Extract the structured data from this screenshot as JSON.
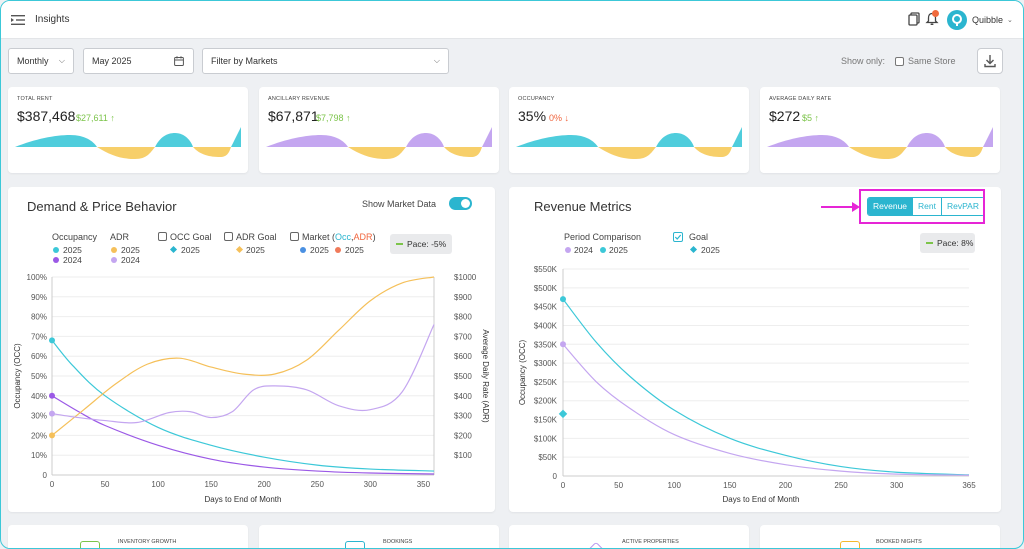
{
  "header": {
    "title": "Insights",
    "user_name": "Quibble"
  },
  "filters": {
    "period": "Monthly",
    "date": "May 2025",
    "markets_placeholder": "Filter by Markets",
    "show_only_label": "Show only:",
    "same_store_label": "Same Store"
  },
  "kpis": [
    {
      "label": "TOTAL RENT",
      "value": "$387,468",
      "delta": "$27,611",
      "direction": "up",
      "color": "#3cc8d8"
    },
    {
      "label": "ANCILLARY REVENUE",
      "value": "$67,871",
      "delta": "$7,798",
      "direction": "up",
      "color": "#b996ee"
    },
    {
      "label": "OCCUPANCY",
      "value": "35%",
      "delta": "0%",
      "direction": "down",
      "color": "#3cc8d8"
    },
    {
      "label": "AVERAGE DAILY RATE",
      "value": "$272",
      "delta": "$5",
      "direction": "up",
      "color": "#b996ee"
    }
  ],
  "demand": {
    "title": "Demand & Price Behavior",
    "market_toggle_label": "Show Market Data",
    "market_toggle_on": true,
    "legend": {
      "occupancy": "Occupancy",
      "adr": "ADR",
      "occ_goal": "OCC Goal",
      "adr_goal": "ADR Goal",
      "market": "Market (",
      "market_occ": "Occ",
      "market_sep": ",",
      "market_adr": "ADR",
      "market_close": ")",
      "y2025": "2025",
      "y2024": "2024"
    },
    "pace_label": "Pace: -5%",
    "xlabel": "Days to End of Month",
    "ylabel_left": "Occupancy (OCC)",
    "ylabel_right": "Average Daily Rate (ADR)"
  },
  "revenue": {
    "title": "Revenue Metrics",
    "tabs": [
      "Revenue",
      "Rent",
      "RevPAR"
    ],
    "active_tab": "Revenue",
    "legend": {
      "period": "Period Comparison",
      "goal": "Goal",
      "y2024": "2024",
      "y2025": "2025"
    },
    "pace_label": "Pace: 8%",
    "xlabel": "Days to End of Month",
    "ylabel": "Occupancy (OCC)"
  },
  "bottom_cards": [
    {
      "label": "INVENTORY GROWTH",
      "icon": "inventory-icon",
      "color": "#7cc44a"
    },
    {
      "label": "BOOKINGS",
      "icon": "calendar-icon",
      "color": "#2bb5cf"
    },
    {
      "label": "ACTIVE PROPERTIES",
      "icon": "diamond-icon",
      "color": "#b996ee"
    },
    {
      "label": "BOOKED NIGHTS",
      "icon": "warning-icon",
      "color": "#f5b82e"
    }
  ],
  "colors": {
    "teal": "#2bb5cf",
    "purple": "#9b59e6",
    "light_purple": "#c4a6f0",
    "orange": "#f5b82e",
    "highlight": "#e625d6"
  },
  "chart_data": [
    {
      "type": "line",
      "title": "",
      "xlabel": "Days to End of Month",
      "ylabel": "Occupancy (OCC)",
      "y2label": "Average Daily Rate (ADR)",
      "xlim": [
        0,
        360
      ],
      "ylim": [
        0,
        100
      ],
      "y2lim": [
        0,
        1000
      ],
      "x_ticks": [
        0,
        50,
        100,
        150,
        200,
        250,
        300,
        350
      ],
      "y_ticks": [
        "0",
        "10%",
        "20%",
        "30%",
        "40%",
        "50%",
        "60%",
        "70%",
        "80%",
        "90%",
        "100%"
      ],
      "y2_ticks": [
        "$100",
        "$200",
        "$300",
        "$400",
        "$500",
        "$600",
        "$700",
        "$800",
        "$900",
        "$1000"
      ],
      "series": [
        {
          "name": "Occupancy 2025",
          "axis": "left",
          "color": "#3cc8d8",
          "x": [
            0,
            20,
            50,
            100,
            150,
            200,
            250,
            300,
            360
          ],
          "y": [
            68,
            55,
            40,
            24,
            15,
            9,
            5,
            3,
            2
          ]
        },
        {
          "name": "Occupancy 2024",
          "axis": "left",
          "color": "#9b59e6",
          "x": [
            0,
            25,
            50,
            100,
            150,
            200,
            250,
            300,
            360
          ],
          "y": [
            40,
            32,
            25,
            15,
            8,
            4,
            2,
            1,
            0.5
          ]
        },
        {
          "name": "ADR 2025",
          "axis": "right",
          "color": "#f5c05a",
          "x": [
            0,
            30,
            60,
            90,
            120,
            150,
            180,
            210,
            240,
            270,
            300,
            330,
            360
          ],
          "y": [
            200,
            330,
            460,
            560,
            590,
            545,
            510,
            510,
            580,
            730,
            880,
            970,
            1000
          ]
        },
        {
          "name": "ADR 2024",
          "axis": "right",
          "color": "#c4a6f0",
          "x": [
            0,
            25,
            50,
            80,
            110,
            130,
            150,
            170,
            190,
            210,
            240,
            270,
            300,
            330,
            360
          ],
          "y": [
            310,
            290,
            275,
            265,
            315,
            320,
            290,
            320,
            430,
            450,
            430,
            350,
            330,
            420,
            760
          ]
        }
      ],
      "markers": [
        {
          "name": "OCC 2025 start",
          "x": 0,
          "y": 68,
          "color": "#3cc8d8"
        },
        {
          "name": "OCC 2024 start",
          "x": 0,
          "y": 40,
          "color": "#9b59e6"
        },
        {
          "name": "ADR 2024 start",
          "x": 0,
          "y2": 310,
          "color": "#c4a6f0"
        },
        {
          "name": "ADR 2025 start",
          "x": 0,
          "y2": 200,
          "color": "#f5c05a"
        }
      ]
    },
    {
      "type": "line",
      "title": "",
      "xlabel": "Days to End of Month",
      "ylabel": "Occupancy (OCC)",
      "xlim": [
        0,
        365
      ],
      "ylim": [
        0,
        550
      ],
      "x_ticks": [
        0,
        50,
        100,
        150,
        200,
        250,
        300,
        365
      ],
      "y_ticks": [
        "0",
        "$50K",
        "$100K",
        "$150K",
        "$200K",
        "$250K",
        "$300K",
        "$350K",
        "$400K",
        "$450K",
        "$500K",
        "$550K"
      ],
      "series": [
        {
          "name": "2025",
          "color": "#3cc8d8",
          "x": [
            0,
            30,
            60,
            100,
            150,
            200,
            250,
            300,
            365
          ],
          "y": [
            470,
            355,
            265,
            175,
            100,
            55,
            25,
            10,
            3
          ]
        },
        {
          "name": "2024",
          "color": "#c4a6f0",
          "x": [
            0,
            30,
            60,
            100,
            150,
            200,
            250,
            300,
            365
          ],
          "y": [
            350,
            250,
            180,
            110,
            60,
            30,
            13,
            5,
            2
          ]
        }
      ],
      "markers": [
        {
          "name": "2025 start",
          "x": 0,
          "y": 470,
          "color": "#3cc8d8"
        },
        {
          "name": "2024 start",
          "x": 0,
          "y": 350,
          "color": "#c4a6f0"
        },
        {
          "name": "Goal 2025",
          "x": 0,
          "y": 165,
          "color": "#3cc8d8",
          "shape": "diamond"
        }
      ]
    }
  ]
}
